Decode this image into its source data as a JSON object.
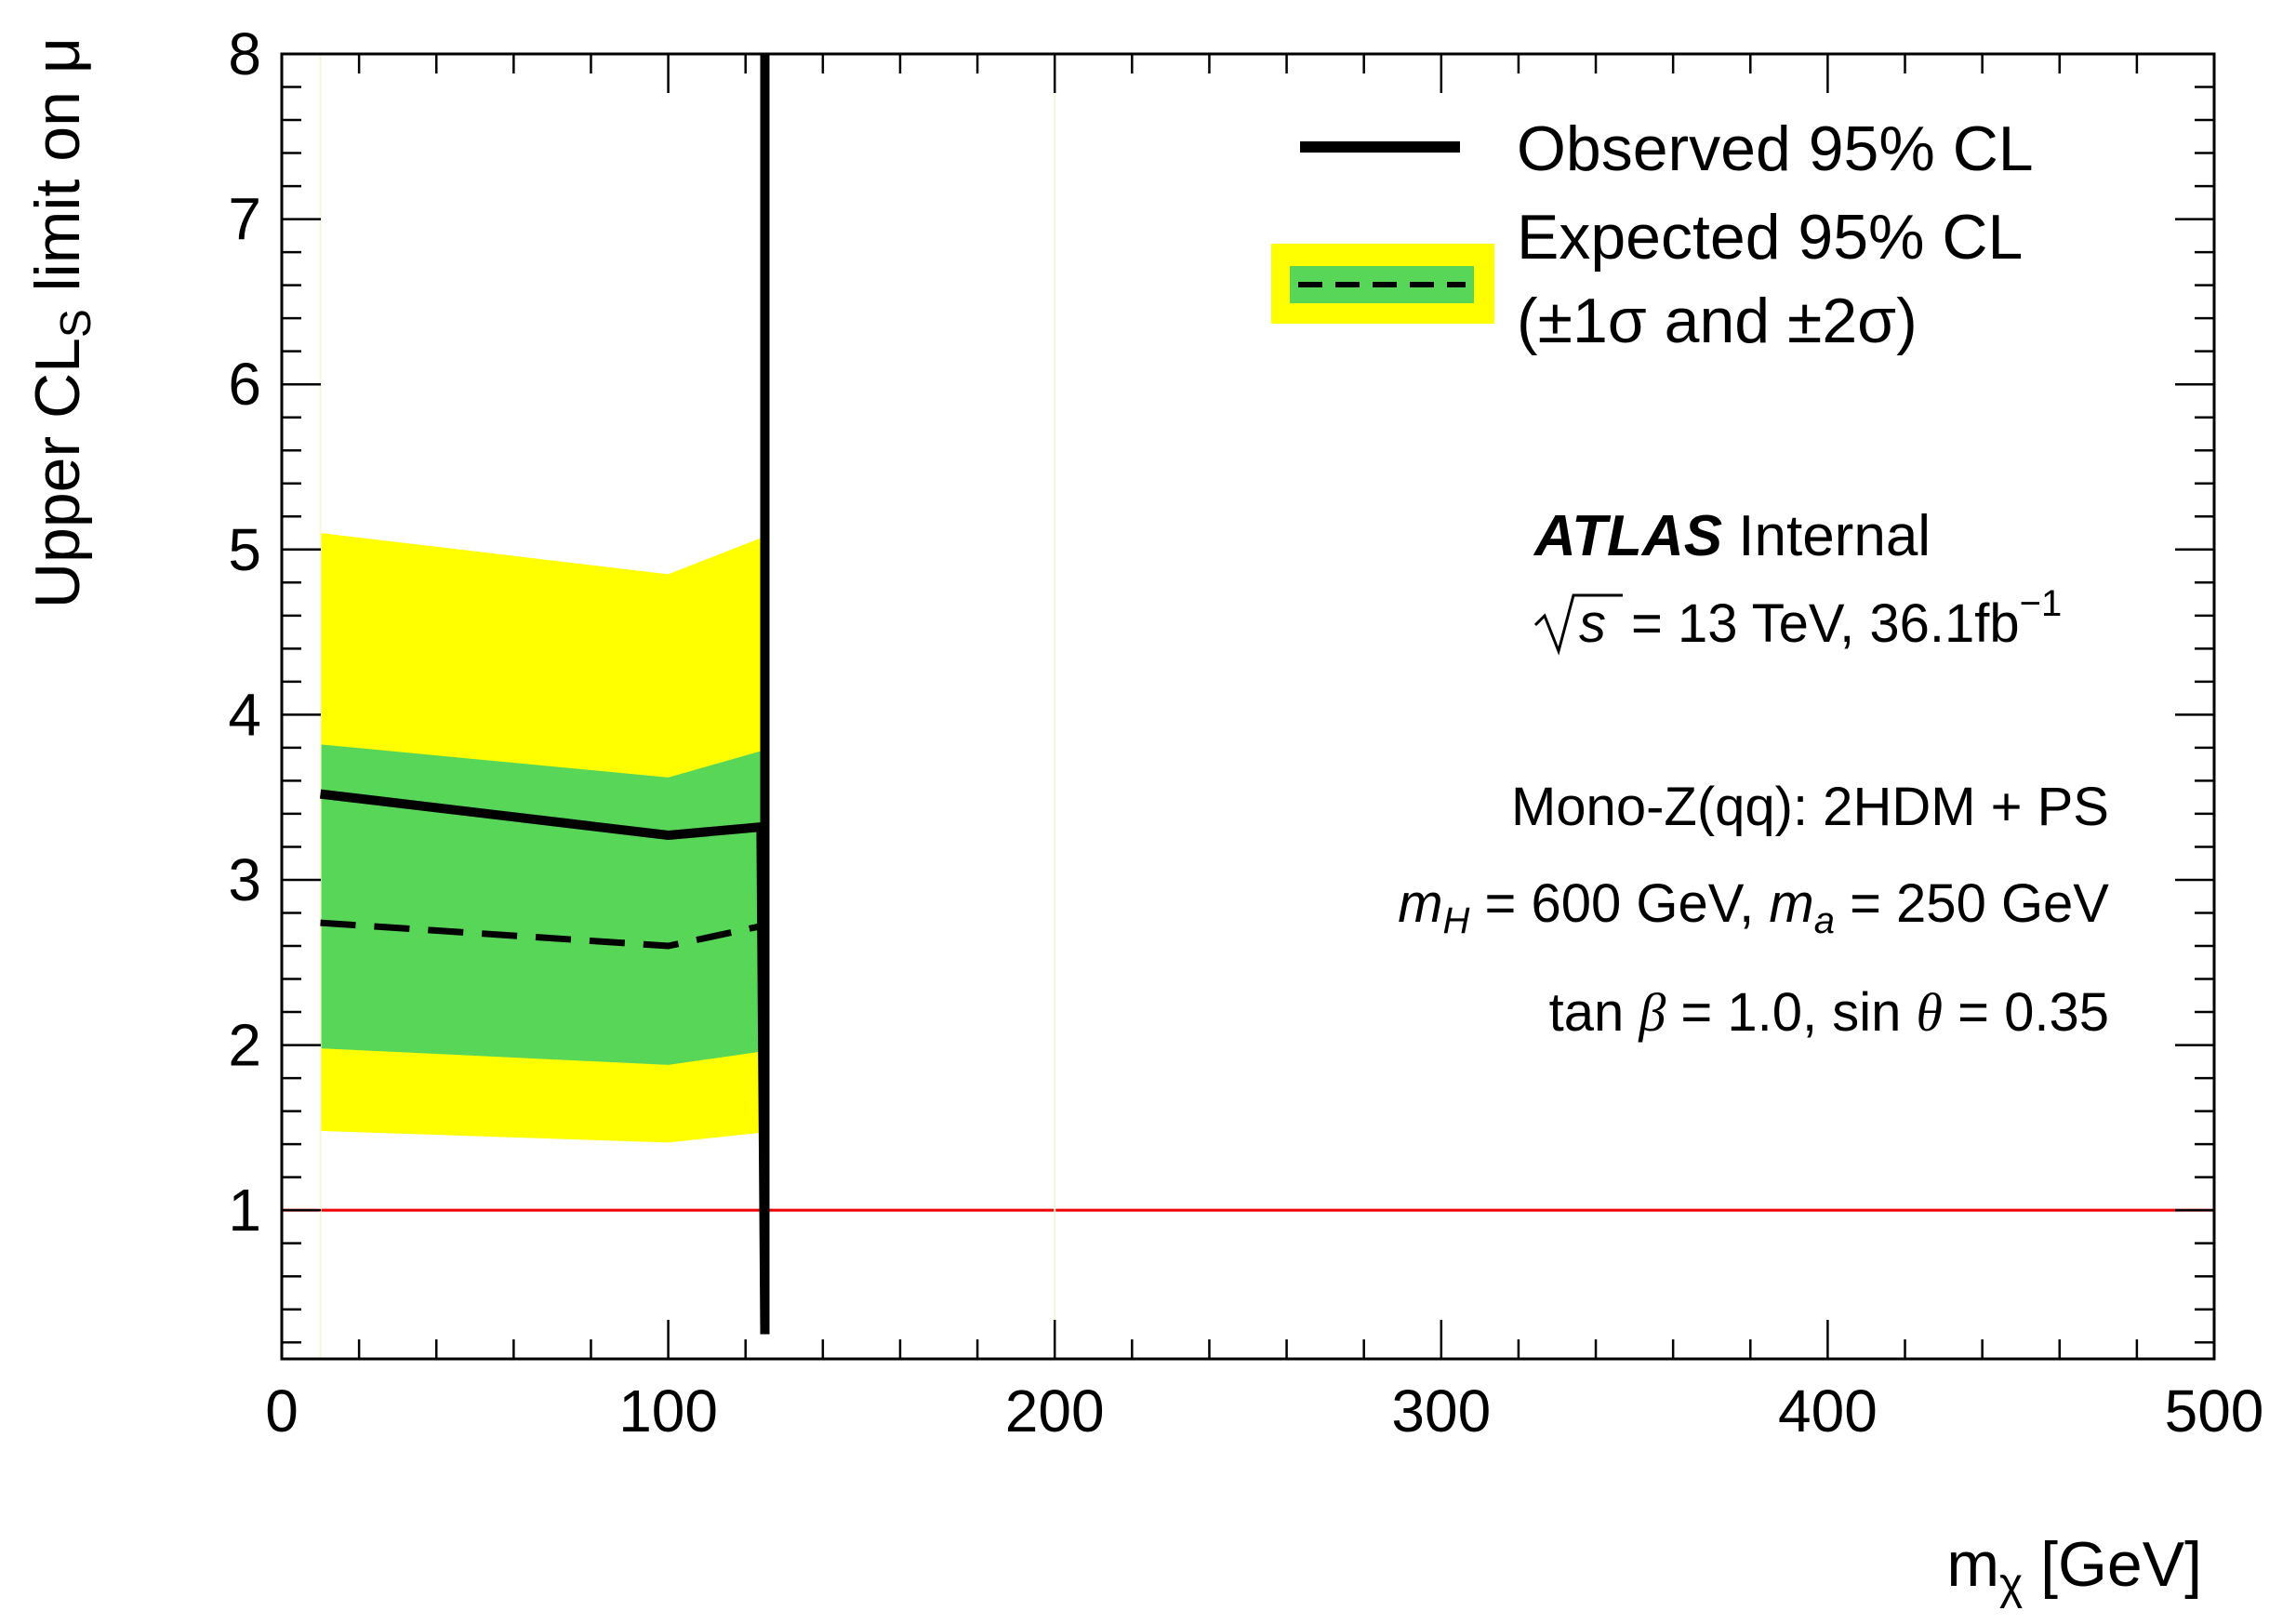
{
  "chart_data": {
    "type": "line",
    "xlabel": "m",
    "xlabel_sub": "χ",
    "xlabel_unit": " [GeV]",
    "ylabel_pre": "Upper CL",
    "ylabel_sub": "S",
    "ylabel_post": " limit on μ",
    "xlim": [
      0,
      500
    ],
    "ylim": [
      0.1,
      8
    ],
    "x_ticks": [
      0,
      100,
      200,
      300,
      400,
      500
    ],
    "y_ticks": [
      1,
      2,
      3,
      4,
      5,
      6,
      7,
      8
    ],
    "grid": false,
    "legend_position": "top-right",
    "x": [
      10,
      100,
      124,
      125
    ],
    "series": [
      {
        "name": "Observed 95% CL",
        "values": [
          3.52,
          3.27,
          3.32,
          0.25
        ]
      },
      {
        "name": "Expected 95% CL",
        "values": [
          2.74,
          2.6,
          2.72,
          null
        ]
      }
    ],
    "bands": {
      "x": [
        10,
        100,
        124
      ],
      "green_low": [
        1.98,
        1.88,
        1.96
      ],
      "green_high": [
        3.82,
        3.62,
        3.78
      ],
      "yellow_low": [
        1.48,
        1.41,
        1.47
      ],
      "yellow_high": [
        5.1,
        4.85,
        5.07
      ]
    },
    "reference_line": {
      "y": 1,
      "color": "#ee0000"
    },
    "colors": {
      "green": "#57d658",
      "yellow": "#ffff00",
      "line": "#000000"
    }
  },
  "legend": {
    "observed": "Observed 95% CL",
    "expected_line1": "Expected 95% CL",
    "expected_line2": "(±1σ and ±2σ)"
  },
  "annotations": {
    "atlas": "ATLAS",
    "internal": " Internal",
    "energy": "= 13 TeV, 36.1fb",
    "energy_sup": "−1",
    "model": "Mono-Z(qq): 2HDM + PS",
    "masses": "m_H = 600 GeV, m_a = 250 GeV",
    "params": "tan β = 1.0, sin θ = 0.35"
  }
}
